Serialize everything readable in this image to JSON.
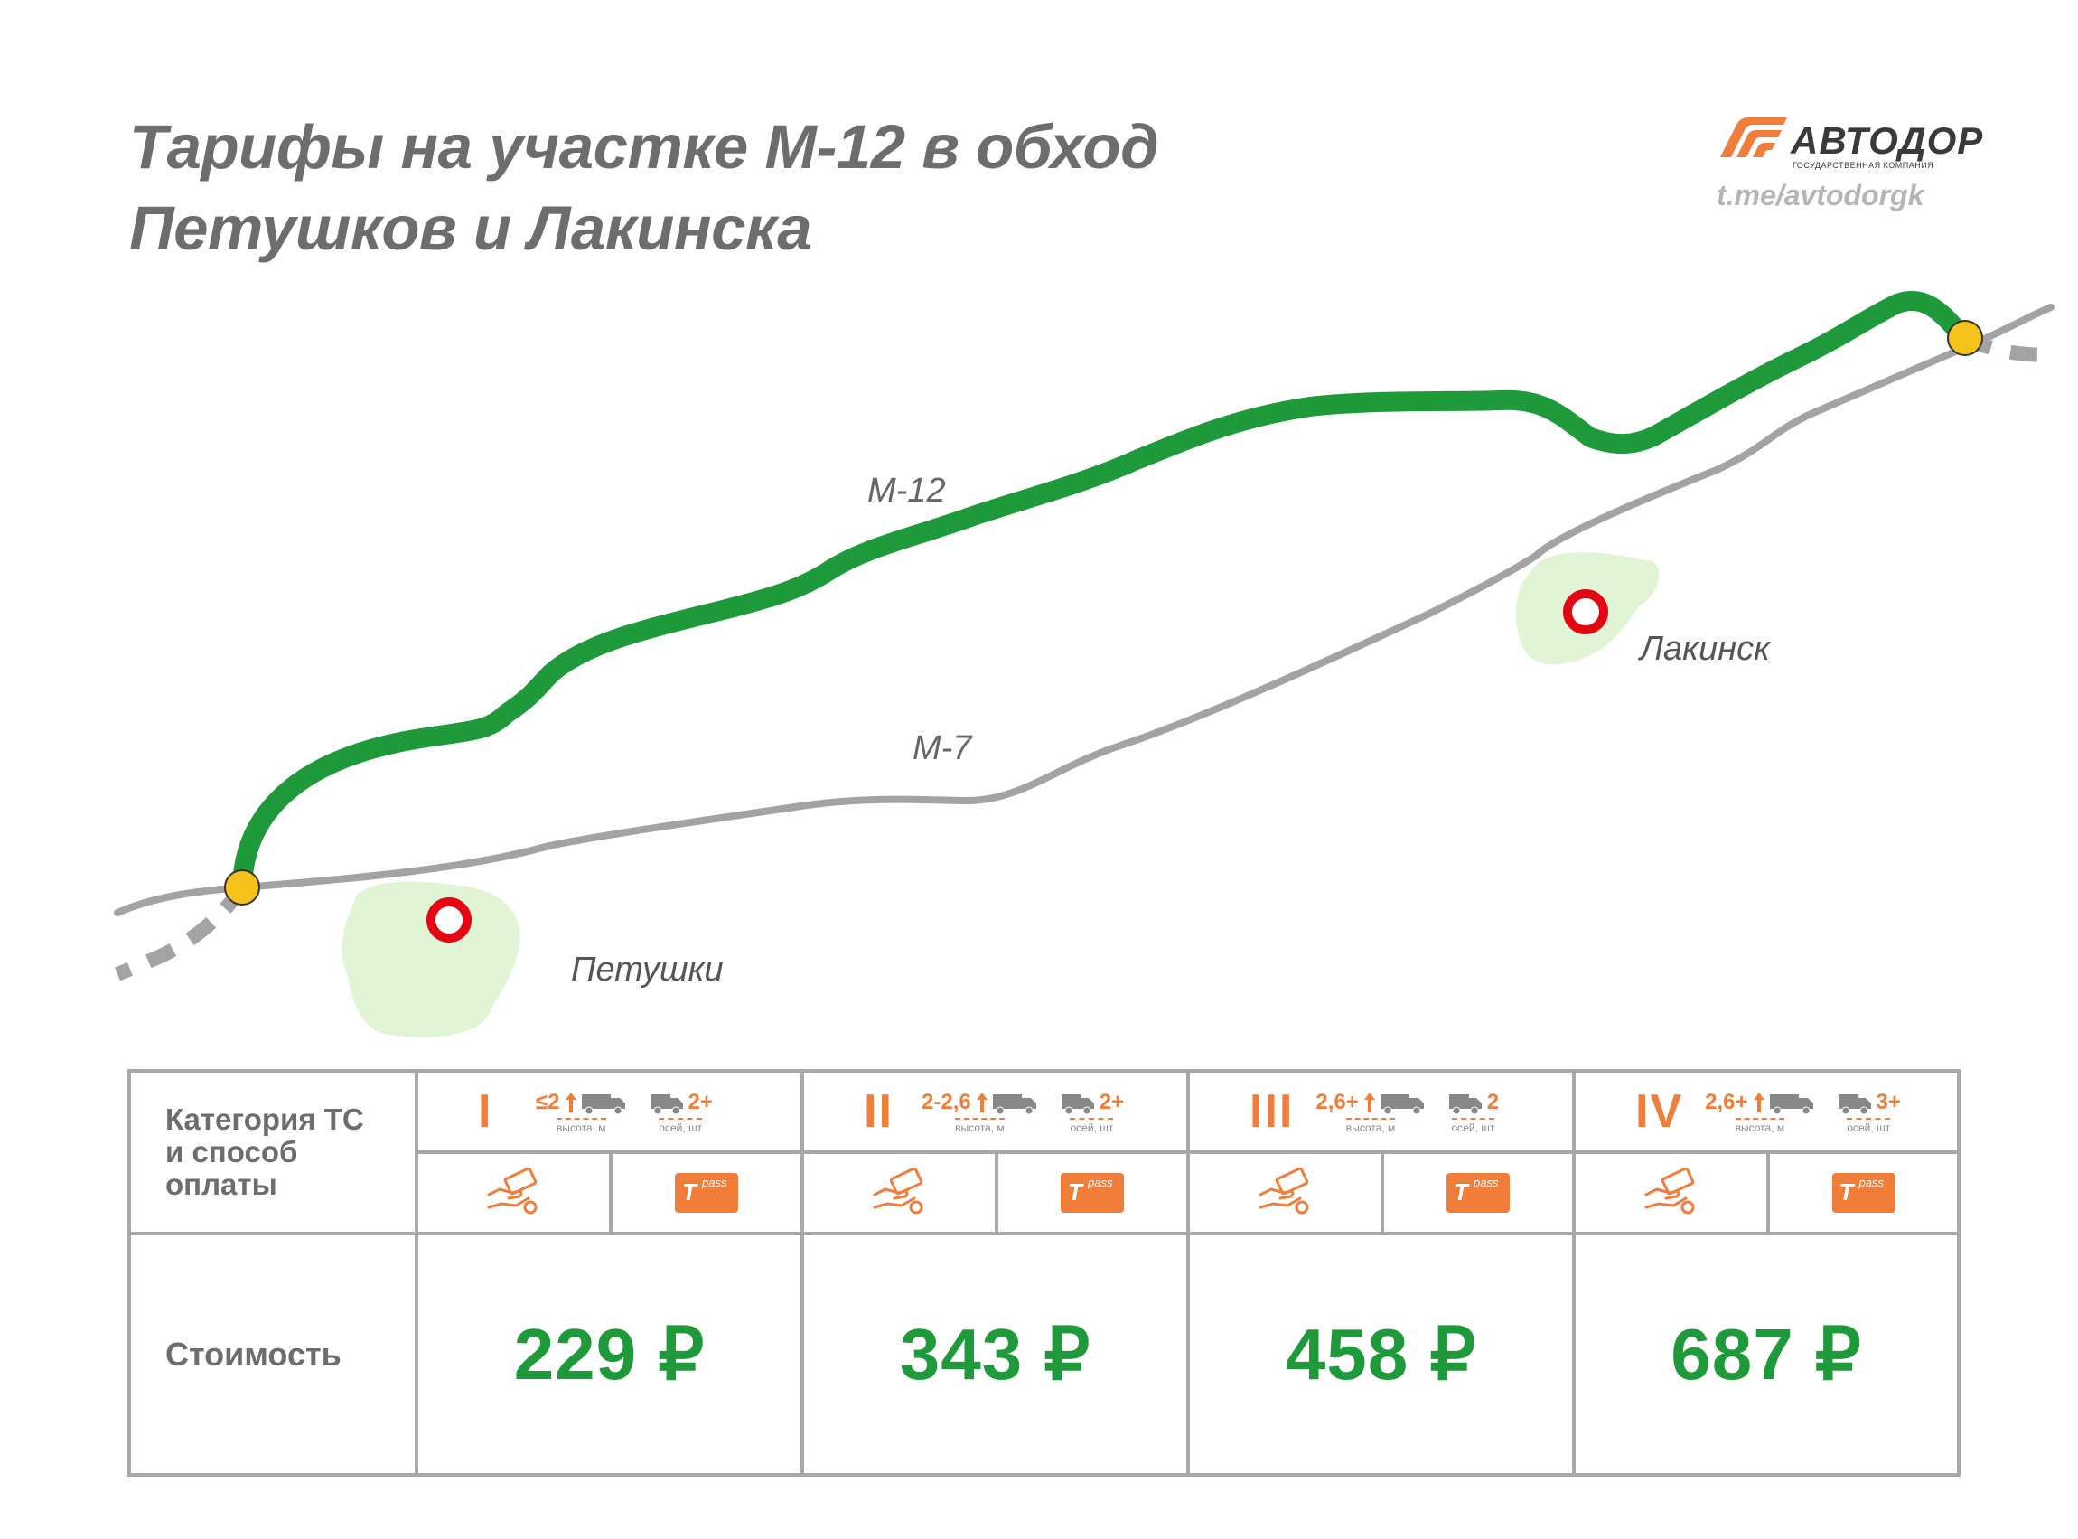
{
  "title": {
    "line1": "Тарифы на участке М-12 в обход",
    "line2": "Петушков и Лакинска"
  },
  "logo": {
    "name": "АВТОДОР",
    "subtitle": "ГОСУДАРСТВЕННАЯ КОМПАНИЯ",
    "link": "t.me/avtodorgk"
  },
  "map": {
    "roads": {
      "m12": "М-12",
      "m7": "М-7"
    },
    "towns": {
      "petushki": "Петушки",
      "lakinsk": "Лакинск"
    },
    "colors": {
      "m12_road": "#1f9a3a",
      "m7_road": "#a3a3a3",
      "junction": "#f6c21c",
      "town_marker": "#e30613",
      "town_area": "#e2f4d6"
    }
  },
  "table": {
    "header_label": [
      "Категория ТС",
      "и способ",
      "оплаты"
    ],
    "cost_label": "Стоимость",
    "categories": [
      {
        "roman": "I",
        "height": "≤2",
        "height_caption": "высота, м",
        "axles": "2+",
        "axles_caption": "осей, шт",
        "price": "229 ₽"
      },
      {
        "roman": "II",
        "height": "2-2,6",
        "height_caption": "высота, м",
        "axles": "2+",
        "axles_caption": "осей, шт",
        "price": "343 ₽"
      },
      {
        "roman": "III",
        "height": "2,6+",
        "height_caption": "высота, м",
        "axles": "2",
        "axles_caption": "осей, шт",
        "price": "458 ₽"
      },
      {
        "roman": "IV",
        "height": "2,6+",
        "height_caption": "высота, м",
        "axles": "3+",
        "axles_caption": "осей, шт",
        "price": "687 ₽"
      }
    ],
    "payment_methods": {
      "cash_icon": "cash-payment-icon",
      "transponder_icon": "t-pass-transponder-icon",
      "transponder_label": "pass"
    },
    "colors": {
      "accent": "#f07d3a",
      "price": "#1f9a3a",
      "border": "#a8a8a8"
    }
  }
}
